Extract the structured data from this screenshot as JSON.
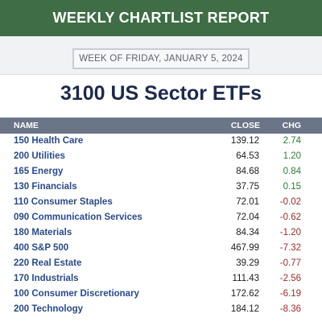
{
  "header": {
    "banner": "WEEKLY CHARTLIST REPORT",
    "week_of": "WEEK OF FRIDAY, JANUARY 5, 2024",
    "title": "3100 US Sector ETFs"
  },
  "table": {
    "columns": {
      "name": "NAME",
      "close": "CLOSE",
      "chg": "CHG"
    },
    "rows": [
      {
        "name": "150 Health Care",
        "close": "139.12",
        "chg": "2.74",
        "dir": "pos"
      },
      {
        "name": "200 Utilities",
        "close": "64.53",
        "chg": "1.20",
        "dir": "pos"
      },
      {
        "name": "165 Energy",
        "close": "84.68",
        "chg": "0.84",
        "dir": "pos"
      },
      {
        "name": "130 Financials",
        "close": "37.75",
        "chg": "0.15",
        "dir": "pos"
      },
      {
        "name": "110 Consumer Staples",
        "close": "72.01",
        "chg": "-0.02",
        "dir": "neg"
      },
      {
        "name": "090 Communication Services",
        "close": "72.04",
        "chg": "-0.62",
        "dir": "neg"
      },
      {
        "name": "180 Materials",
        "close": "84.34",
        "chg": "-1.20",
        "dir": "neg"
      },
      {
        "name": "400 S&P 500",
        "close": "467.99",
        "chg": "-7.32",
        "dir": "neg"
      },
      {
        "name": "220 Real Estate",
        "close": "39.29",
        "chg": "-0.77",
        "dir": "neg"
      },
      {
        "name": "170 Industrials",
        "close": "111.43",
        "chg": "-2.56",
        "dir": "neg"
      },
      {
        "name": "100 Consumer Discretionary",
        "close": "172.62",
        "chg": "-6.19",
        "dir": "neg"
      },
      {
        "name": "200 Technology",
        "close": "184.12",
        "chg": "-8.36",
        "dir": "neg"
      }
    ]
  },
  "colors": {
    "banner": "#3f6d45",
    "title": "#1e2a4a",
    "table_header": "#6b7588",
    "name_text": "#2a4a86",
    "positive": "#2e7a39",
    "negative": "#9b2a2a"
  }
}
